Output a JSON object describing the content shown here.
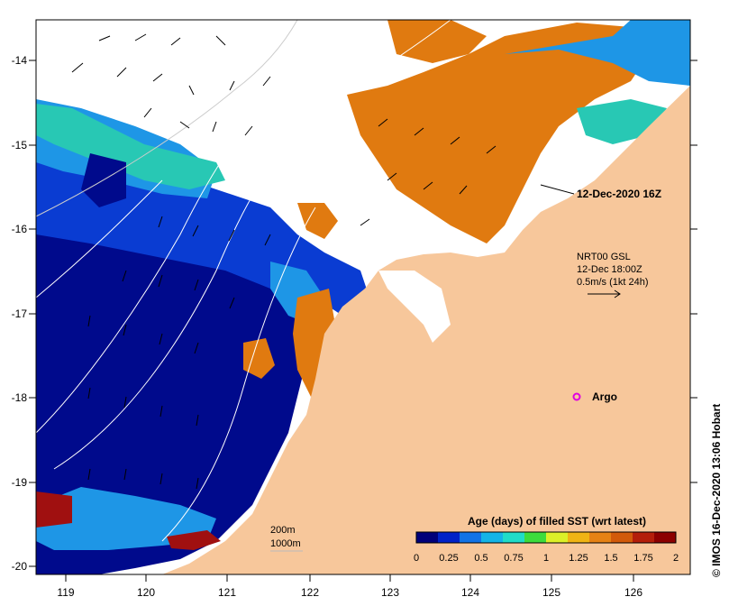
{
  "map": {
    "x_ticks": [
      "119",
      "120",
      "121",
      "122",
      "123",
      "124",
      "125",
      "126"
    ],
    "y_ticks": [
      "-14",
      "-15",
      "-16",
      "-17",
      "-18",
      "-19",
      "-20"
    ],
    "vector_label": {
      "line1": "NRT00 GSL",
      "line2": "12-Dec 18:00Z",
      "line3": "0.5m/s (1kt 24h)"
    },
    "image_time_label": "12-Dec-2020 16Z",
    "argo_label": "Argo",
    "contours": {
      "c200": "200m",
      "c1000": "1000m"
    },
    "colorbar": {
      "title": "Age (days) of filled SST (wrt latest)",
      "tick_labels": [
        "0",
        "0.25",
        "0.5",
        "0.75",
        "1",
        "1.25",
        "1.5",
        "1.75",
        "2"
      ],
      "colors": [
        "#00007a",
        "#0022c8",
        "#1273e6",
        "#14b4e6",
        "#20dcc8",
        "#3cdc3c",
        "#dcf028",
        "#f0b414",
        "#e68214",
        "#d25a0a",
        "#b41e0a",
        "#8c0000"
      ]
    },
    "credit": "© IMOS 16-Dec-2020 13:06 Hobart",
    "colors": {
      "land": "#f7c79b",
      "deep": "#000a8c",
      "mid": "#0a3cd2",
      "light": "#1e96e6",
      "teal": "#28c8b4",
      "orange": "#e07a10",
      "darkred": "#a01010"
    }
  }
}
